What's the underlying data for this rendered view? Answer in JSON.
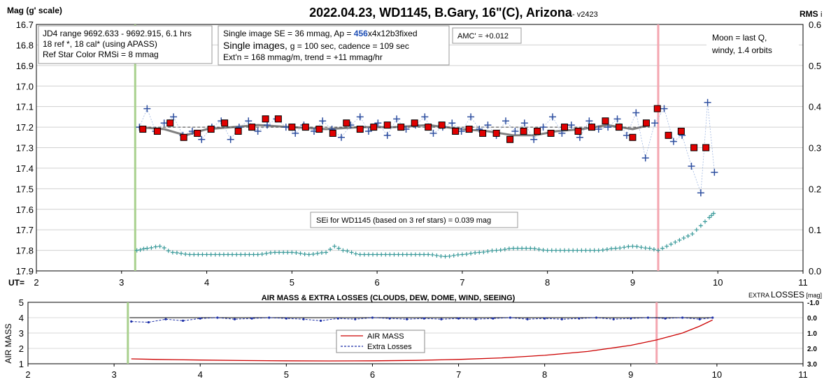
{
  "chart_data": [
    {
      "type": "scatter",
      "title": "2022.04.23, WD1145, B.Gary, 16\"(C), Arizona",
      "version": "- v2423",
      "ylabel": "Mag (g' scale)",
      "y2label": "RMS",
      "y2label_suffix": "i",
      "xlabel": "UT=",
      "xlim": [
        2,
        11
      ],
      "ylim": [
        16.7,
        17.9
      ],
      "y2lim": [
        0.0,
        0.6
      ],
      "y_reversed": true,
      "x_ticks": [
        "2",
        "3",
        "4",
        "5",
        "6",
        "7",
        "8",
        "9",
        "10",
        "11"
      ],
      "y_ticks": [
        "16.7",
        "16.8",
        "16.9",
        "17.0",
        "17.1",
        "17.2",
        "17.3",
        "17.4",
        "17.5",
        "17.6",
        "17.7",
        "17.8",
        "17.9"
      ],
      "y2_ticks": [
        "0.6",
        "0.5",
        "0.4",
        "0.3",
        "0.2",
        "0.1",
        "0.0"
      ],
      "grid": true,
      "vlines": [
        {
          "x": 3.16,
          "color": "#a9d18e"
        },
        {
          "x": 9.3,
          "color": "#f4a6b0"
        }
      ],
      "annotations": {
        "box1": [
          "JD4 range 9692.633 - 9692.915, 6.1 hrs",
          "18 ref *, 18 cal* (using APASS)",
          "Ref Star Color RMSi = 8 mmag"
        ],
        "box2_line1_a": "Single image SE = 36 mmag, Ap = ",
        "box2_line1_b": "456",
        "box2_line1_c": "x4x12b3fixed",
        "box2_line2_a": "Single images, ",
        "box2_line2_b": "g = 100 sec, cadence = 109 sec",
        "box2_line3": "Ext'n = 168 mmag/m, trend = +11 mmag/hr",
        "amc": "AMC' = +0.012",
        "moon": [
          "Moon = last Q,",
          "windy,  1.4 orbits"
        ],
        "sei": "SEi for WD1145 (based on 3 ref stars) = 0.039 mag"
      },
      "colors": {
        "points": "#2e4fa0",
        "avg_fill": "#e00000",
        "trend": "#808080",
        "rms": "#3a9a9a",
        "dashed": "#404040"
      },
      "series": [
        {
          "name": "",
          "x": [
            3.21,
            3.3,
            3.4,
            3.5,
            3.61,
            3.72,
            3.83,
            3.94,
            4.06,
            4.17,
            4.28,
            4.38,
            4.49,
            4.6,
            4.71,
            4.82,
            4.93,
            5.04,
            5.14,
            5.26,
            5.36,
            5.47,
            5.58,
            5.69,
            5.8,
            5.9,
            6.01,
            6.12,
            6.23,
            6.34,
            6.45,
            6.56,
            6.66,
            6.77,
            6.88,
            6.99,
            7.1,
            7.2,
            7.3,
            7.4,
            7.51,
            7.62,
            7.73,
            7.84,
            7.95,
            8.06,
            8.17,
            8.28,
            8.38,
            8.49,
            8.6,
            8.71,
            8.82,
            8.93,
            9.04,
            9.15,
            9.26,
            9.37,
            9.48,
            9.58,
            9.69,
            9.8,
            9.88,
            9.96
          ],
          "y": [
            17.2,
            17.11,
            17.22,
            17.18,
            17.15,
            17.24,
            17.22,
            17.26,
            17.2,
            17.17,
            17.26,
            17.2,
            17.17,
            17.22,
            17.19,
            17.16,
            17.2,
            17.23,
            17.19,
            17.22,
            17.17,
            17.21,
            17.25,
            17.19,
            17.15,
            17.22,
            17.18,
            17.24,
            17.16,
            17.21,
            17.19,
            17.15,
            17.23,
            17.2,
            17.18,
            17.22,
            17.15,
            17.21,
            17.19,
            17.24,
            17.17,
            17.22,
            17.18,
            17.26,
            17.2,
            17.15,
            17.23,
            17.19,
            17.25,
            17.17,
            17.21,
            17.2,
            17.16,
            17.24,
            17.13,
            17.35,
            17.18,
            17.11,
            17.27,
            17.24,
            17.39,
            17.52,
            17.08,
            17.42
          ]
        },
        {
          "name": "",
          "x": [
            3.25,
            3.42,
            3.57,
            3.73,
            3.89,
            4.05,
            4.21,
            4.37,
            4.53,
            4.69,
            4.84,
            5.0,
            5.16,
            5.32,
            5.48,
            5.64,
            5.8,
            5.96,
            6.12,
            6.28,
            6.44,
            6.6,
            6.76,
            6.92,
            7.08,
            7.24,
            7.4,
            7.56,
            7.72,
            7.88,
            8.04,
            8.2,
            8.36,
            8.52,
            8.68,
            8.84,
            9.0,
            9.16,
            9.29,
            9.42,
            9.57,
            9.72,
            9.86
          ],
          "y": [
            17.21,
            17.22,
            17.18,
            17.25,
            17.23,
            17.21,
            17.18,
            17.22,
            17.2,
            17.16,
            17.16,
            17.2,
            17.2,
            17.21,
            17.23,
            17.18,
            17.21,
            17.2,
            17.19,
            17.2,
            17.18,
            17.2,
            17.19,
            17.22,
            17.21,
            17.23,
            17.23,
            17.26,
            17.22,
            17.22,
            17.23,
            17.2,
            17.22,
            17.2,
            17.17,
            17.2,
            17.25,
            17.18,
            17.11,
            17.24,
            17.22,
            17.3,
            17.3
          ]
        },
        {
          "name": "",
          "x": [
            3.2,
            3.5,
            3.75,
            4.0,
            4.3,
            4.6,
            5.0,
            5.4,
            5.8,
            6.2,
            6.6,
            7.0,
            7.3,
            7.6,
            7.85,
            8.1,
            8.4,
            8.7,
            9.0,
            9.2
          ],
          "y": [
            17.2,
            17.21,
            17.24,
            17.21,
            17.2,
            17.19,
            17.2,
            17.21,
            17.2,
            17.2,
            17.19,
            17.21,
            17.22,
            17.24,
            17.24,
            17.22,
            17.21,
            17.19,
            17.21,
            17.19
          ]
        },
        {
          "name": "",
          "x": [
            3.18,
            3.3,
            3.45,
            3.6,
            3.8,
            4.0,
            4.2,
            4.4,
            4.6,
            4.8,
            5.0,
            5.2,
            5.4,
            5.5,
            5.6,
            5.8,
            6.0,
            6.2,
            6.4,
            6.6,
            6.8,
            7.0,
            7.2,
            7.4,
            7.6,
            7.8,
            8.0,
            8.2,
            8.4,
            8.6,
            8.8,
            9.0,
            9.2,
            9.3,
            9.4,
            9.5,
            9.6,
            9.7,
            9.8,
            9.9,
            9.95
          ],
          "y2": [
            0.05,
            0.055,
            0.06,
            0.045,
            0.04,
            0.04,
            0.04,
            0.04,
            0.04,
            0.045,
            0.045,
            0.04,
            0.045,
            0.06,
            0.05,
            0.04,
            0.04,
            0.04,
            0.04,
            0.04,
            0.035,
            0.04,
            0.045,
            0.05,
            0.055,
            0.055,
            0.05,
            0.05,
            0.05,
            0.05,
            0.055,
            0.06,
            0.055,
            0.05,
            0.06,
            0.07,
            0.08,
            0.09,
            0.11,
            0.13,
            0.14
          ]
        }
      ]
    },
    {
      "type": "line",
      "title": "AIR MASS & EXTRA LOSSES (CLOUDS, DEW, DOME, WIND, SEEING)",
      "ylabel": "AIR MASS",
      "y2label": "EXTRA LOSSES [mag]",
      "y2label_big": "LOSSES",
      "y2label_pre": "EXTRA ",
      "y2label_post": " [mag]",
      "xlim": [
        2,
        11
      ],
      "ylim": [
        1,
        5
      ],
      "y2lim": [
        3.0,
        -1.0
      ],
      "x_ticks": [
        "2",
        "3",
        "4",
        "5",
        "6",
        "7",
        "8",
        "9",
        "10",
        "11"
      ],
      "y_ticks": [
        "5",
        "4",
        "3",
        "2",
        "1"
      ],
      "y2_ticks": [
        "-1.0",
        "0.0",
        "1.0",
        "2.0",
        "3.0"
      ],
      "legend": "center",
      "vlines": [
        {
          "x": 3.16,
          "color": "#a9d18e"
        },
        {
          "x": 9.3,
          "color": "#f4a6b0"
        }
      ],
      "series": [
        {
          "name": "AIR MASS",
          "color": "#cc0000",
          "x": [
            3.2,
            3.5,
            4.0,
            4.5,
            5.0,
            5.5,
            6.0,
            6.5,
            7.0,
            7.5,
            8.0,
            8.5,
            9.0,
            9.3,
            9.6,
            9.8,
            9.95
          ],
          "y": [
            1.32,
            1.28,
            1.24,
            1.21,
            1.19,
            1.18,
            1.19,
            1.22,
            1.28,
            1.38,
            1.55,
            1.8,
            2.2,
            2.55,
            3.0,
            3.45,
            3.85
          ]
        },
        {
          "name": "Extra Losses",
          "color": "#1c2fa8",
          "x": [
            3.2,
            3.4,
            3.6,
            3.8,
            4.0,
            4.2,
            4.4,
            4.6,
            4.8,
            5.0,
            5.2,
            5.4,
            5.6,
            5.8,
            6.0,
            6.2,
            6.4,
            6.6,
            6.8,
            7.0,
            7.2,
            7.4,
            7.6,
            7.8,
            8.0,
            8.2,
            8.4,
            8.6,
            8.8,
            9.0,
            9.2,
            9.4,
            9.6,
            9.8,
            9.95
          ],
          "y2": [
            0.25,
            0.3,
            0.1,
            0.2,
            0.05,
            0.0,
            0.1,
            0.05,
            0.0,
            0.05,
            0.1,
            0.2,
            0.05,
            0.1,
            0.0,
            0.05,
            0.1,
            0.05,
            0.1,
            0.05,
            0.1,
            0.05,
            0.0,
            0.1,
            0.05,
            0.1,
            0.05,
            0.0,
            0.1,
            0.05,
            0.0,
            0.05,
            0.0,
            0.1,
            0.0
          ]
        }
      ]
    }
  ]
}
